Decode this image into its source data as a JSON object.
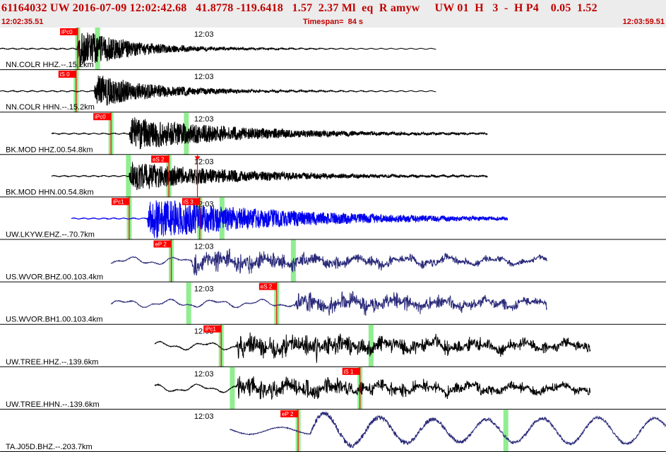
{
  "header": {
    "title": "61164032 UW 2016-07-09 12:02:42.68   41.8778 -119.6418   1.57  2.37 Ml  eq  R amyw     UW 01  H   3  -  H P4    0.05  1.52",
    "start_time": "12:02:35.51",
    "timespan": "Timespan=  84 s",
    "end_time": "12:03:59.51"
  },
  "colors": {
    "header_bg": "#ececec",
    "header_text": "#c00000",
    "pick_box": "#ff0000",
    "pick_line": "#ff0000",
    "pick_window": "#90ee90",
    "trace_default": "#000000",
    "trace_navy": "#2a2a7a",
    "trace_blue": "#0000ee",
    "divider": "#000000"
  },
  "chart_data": {
    "type": "line",
    "title": "",
    "xlabel": "",
    "ylabel": "",
    "xlim": [
      0,
      84
    ],
    "time_tick": {
      "label": "12:03",
      "t": 24.49
    },
    "channels": [
      {
        "label": "NN.COLR HHZ.--.15.2km",
        "color": "black",
        "trace_start": 0.0,
        "trace_end": 55.0,
        "first_motion": 9.7,
        "amplitude": 0.9,
        "style": "hf",
        "decay": 7,
        "picks": [
          {
            "label": "iPc0",
            "t": 9.8,
            "window": true
          }
        ],
        "extra_windows": [
          12.3
        ]
      },
      {
        "label": "NN.COLR HHN.--.15.2km",
        "color": "black",
        "trace_start": 0.0,
        "trace_end": 55.0,
        "first_motion": 11.9,
        "amplitude": 0.75,
        "style": "hf",
        "decay": 8,
        "picks": [
          {
            "label": "iS 0",
            "t": 9.6,
            "window": true
          }
        ],
        "extra_windows": []
      },
      {
        "label": "BK.MOD HHZ.00.54.8km",
        "color": "black",
        "trace_start": 6.5,
        "trace_end": 61.5,
        "first_motion": 16.3,
        "amplitude": 0.75,
        "style": "hf",
        "decay": 14,
        "picks": [
          {
            "label": "iPc0",
            "t": 14.0,
            "window": true
          }
        ],
        "extra_windows": [
          23.5
        ]
      },
      {
        "label": "BK.MOD HHN.00.54.8km",
        "color": "black",
        "trace_start": 6.5,
        "trace_end": 61.5,
        "first_motion": 16.3,
        "amplitude": 0.65,
        "style": "hf",
        "decay": 14,
        "picks": [
          {
            "label": "eS 2",
            "t": 21.3,
            "window": true
          },
          {
            "label": "",
            "t": 24.9,
            "window": false
          }
        ],
        "extra_windows": [
          16.2
        ]
      },
      {
        "label": "UW.LKYW.EHZ.--.70.7km",
        "color": "blue",
        "trace_start": 9.0,
        "trace_end": 64.0,
        "first_motion": 18.6,
        "amplitude": 0.9,
        "style": "hf",
        "decay": 18,
        "picks": [
          {
            "label": "iPc1",
            "t": 16.3,
            "window": true
          },
          {
            "label": "iS 3",
            "t": 25.2,
            "window": true
          }
        ],
        "extra_windows": [
          28.0
        ]
      },
      {
        "label": "US.WVOR.BHZ.00.103.4km",
        "color": "navy",
        "trace_start": 14.0,
        "trace_end": 69.0,
        "first_motion": 24.0,
        "amplitude": 0.6,
        "style": "lf",
        "decay": 30,
        "picks": [
          {
            "label": "eP 2",
            "t": 21.6,
            "window": true
          }
        ],
        "extra_windows": [
          37.0
        ]
      },
      {
        "label": "US.WVOR.BH1.00.103.4km",
        "color": "navy",
        "trace_start": 14.0,
        "trace_end": 69.0,
        "first_motion": 37.0,
        "amplitude": 0.6,
        "style": "lf",
        "decay": 30,
        "picks": [
          {
            "label": "eS 2",
            "t": 34.9,
            "window": true
          }
        ],
        "extra_windows": [
          23.8
        ]
      },
      {
        "label": "UW.TREE.HHZ.--.139.6km",
        "color": "black",
        "trace_start": 19.5,
        "trace_end": 74.5,
        "first_motion": 29.7,
        "amplitude": 0.7,
        "style": "lf",
        "decay": 40,
        "picks": [
          {
            "label": "iPc1",
            "t": 27.9,
            "window": true
          }
        ],
        "extra_windows": [
          46.8
        ]
      },
      {
        "label": "UW.TREE.HHN.--.139.6km",
        "color": "black",
        "trace_start": 19.5,
        "trace_end": 74.5,
        "first_motion": 29.7,
        "amplitude": 0.6,
        "style": "lf",
        "decay": 40,
        "picks": [
          {
            "label": "iS 1",
            "t": 45.4,
            "window": true
          }
        ],
        "extra_windows": [
          29.3
        ]
      },
      {
        "label": "TA.J05D.BHZ.--.203.7km",
        "color": "navy",
        "trace_start": 29.0,
        "trace_end": 84.0,
        "first_motion": 39.0,
        "amplitude": 0.9,
        "style": "vlf",
        "decay": 60,
        "picks": [
          {
            "label": "eP 2",
            "t": 37.6,
            "window": true
          }
        ],
        "extra_windows": [
          63.8
        ]
      }
    ]
  }
}
